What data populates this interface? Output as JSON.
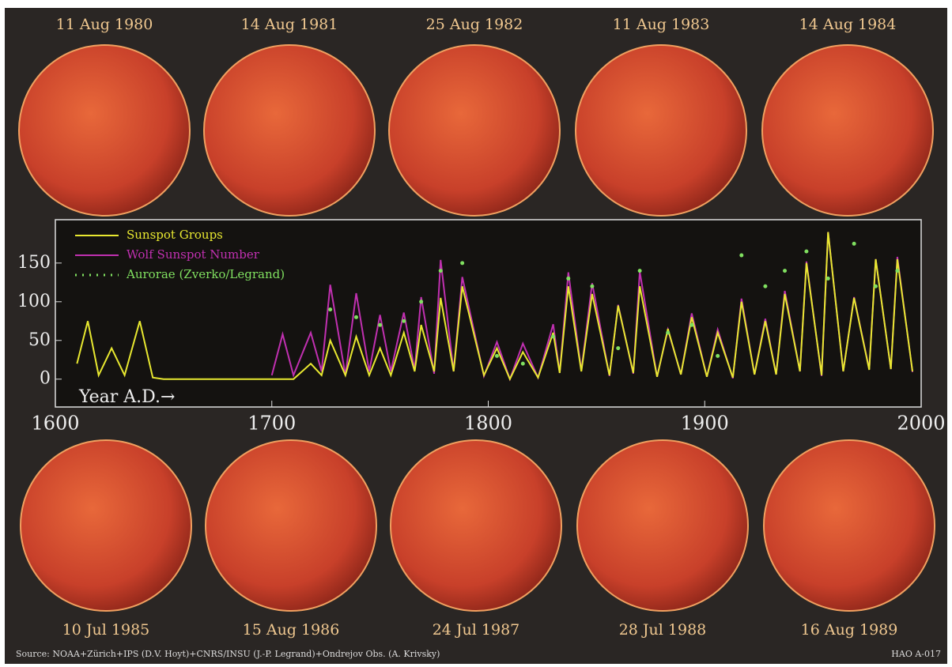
{
  "top_dates": [
    "11 Aug 1980",
    "14 Aug 1981",
    "25 Aug 1982",
    "11 Aug 1983",
    "14 Aug 1984"
  ],
  "bottom_dates": [
    "10 Jul 1985",
    "15 Aug 1986",
    "24 Jul 1987",
    "28 Jul 1988",
    "16 Aug 1989"
  ],
  "source": "Source: NOAA+Zürich+IPS (D.V. Hoyt)+CNRS/INSU (J.-P. Legrand)+Ondrejov Obs. (A. Krivsky)",
  "credit": "HAO A-017",
  "chart_data": {
    "type": "line",
    "x_label": "Year A.D.→",
    "xlim": [
      1600,
      2000
    ],
    "xticks": [
      1600,
      1700,
      1800,
      1900,
      2000
    ],
    "ylim": [
      -36,
      206
    ],
    "yticks": [
      0,
      50,
      100,
      150
    ],
    "x": [
      1610,
      1615,
      1620,
      1626,
      1632,
      1639,
      1645,
      1650,
      1700,
      1705,
      1710,
      1718,
      1723,
      1727,
      1734,
      1739,
      1745,
      1750,
      1755,
      1761,
      1766,
      1769,
      1775,
      1778,
      1784,
      1788,
      1798,
      1804,
      1810,
      1816,
      1823,
      1830,
      1833,
      1837,
      1843,
      1848,
      1856,
      1860,
      1867,
      1870,
      1878,
      1883,
      1889,
      1894,
      1901,
      1906,
      1913,
      1917,
      1923,
      1928,
      1933,
      1937,
      1944,
      1947,
      1954,
      1957,
      1964,
      1969,
      1976,
      1979,
      1986,
      1989,
      1996
    ],
    "series": [
      {
        "name": "Sunspot Groups",
        "color": "#e8e830",
        "style": "line",
        "values": [
          20,
          75,
          5,
          40,
          5,
          75,
          2,
          0,
          0,
          0,
          0,
          20,
          5,
          50,
          5,
          55,
          5,
          40,
          5,
          60,
          10,
          70,
          10,
          105,
          10,
          120,
          5,
          40,
          0,
          35,
          2,
          60,
          8,
          120,
          10,
          110,
          5,
          95,
          8,
          120,
          3,
          65,
          6,
          80,
          3,
          60,
          2,
          100,
          6,
          75,
          6,
          110,
          10,
          150,
          5,
          190,
          10,
          105,
          12,
          155,
          13,
          155,
          10
        ]
      },
      {
        "name": "Wolf Sunspot Number",
        "color": "#c030b0",
        "style": "line",
        "values": [
          null,
          null,
          null,
          null,
          null,
          null,
          null,
          null,
          5,
          58,
          5,
          60,
          10,
          122,
          5,
          111,
          10,
          83,
          10,
          86,
          12,
          106,
          7,
          154,
          10,
          132,
          4,
          48,
          0,
          46,
          2,
          71,
          8,
          138,
          11,
          124,
          4,
          96,
          7,
          139,
          3,
          64,
          6,
          85,
          3,
          64,
          1,
          104,
          6,
          78,
          6,
          114,
          10,
          152,
          4,
          190,
          10,
          106,
          13,
          155,
          13,
          158,
          9
        ]
      },
      {
        "name": "Aurorae (Zverko/Legrand)",
        "color": "#80e060",
        "style": "dots",
        "values": [
          null,
          null,
          null,
          null,
          null,
          null,
          null,
          null,
          null,
          null,
          null,
          null,
          null,
          90,
          null,
          80,
          null,
          70,
          null,
          75,
          null,
          100,
          null,
          140,
          null,
          150,
          null,
          30,
          null,
          20,
          null,
          55,
          null,
          130,
          null,
          120,
          null,
          40,
          null,
          140,
          null,
          60,
          null,
          70,
          null,
          30,
          null,
          160,
          null,
          120,
          null,
          140,
          null,
          165,
          null,
          130,
          null,
          175,
          null,
          120,
          null,
          140,
          null
        ]
      }
    ]
  }
}
